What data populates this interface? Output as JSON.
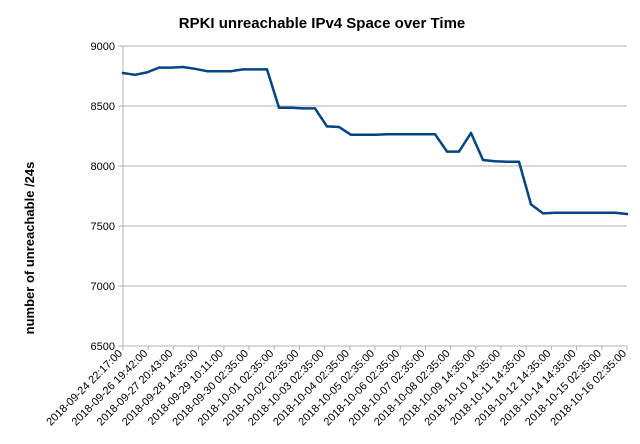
{
  "chart_data": {
    "type": "line",
    "title": "RPKI unreachable IPv4 Space over Time",
    "xlabel": "",
    "ylabel": "number of unreachable /24s",
    "ylim": [
      6500,
      9000
    ],
    "yticks": [
      6500,
      7000,
      7500,
      8000,
      8500,
      9000
    ],
    "grid": true,
    "legend": "none",
    "colors": {
      "series": "#004586",
      "grid": "#b3b3b3"
    },
    "x_tick_labels": [
      "2018-09-24 22:17:00",
      "2018-09-26 19:42:00",
      "2018-09-27 20:43:00",
      "2018-09-28 14:35:00",
      "2018-09-29 10:11:00",
      "2018-09-30 02:35:00",
      "2018-10-01 02:35:00",
      "2018-10-02 02:35:00",
      "2018-10-03 02:35:00",
      "2018-10-04 02:35:00",
      "2018-10-05 02:35:00",
      "2018-10-06 02:35:00",
      "2018-10-07 02:35:00",
      "2018-10-08 02:35:00",
      "2018-10-09 14:35:00",
      "2018-10-10 14:35:00",
      "2018-10-11 14:35:00",
      "2018-10-12 14:35:00",
      "2018-10-14 14:35:00",
      "2018-10-15 02:35:00",
      "2018-10-16 02:35:00"
    ],
    "series": [
      {
        "values": [
          8775,
          8760,
          8780,
          8820,
          8820,
          8825,
          8810,
          8790,
          8790,
          8790,
          8805,
          8805,
          8805,
          8485,
          8485,
          8480,
          8480,
          8330,
          8325,
          8260,
          8260,
          8260,
          8265,
          8265,
          8265,
          8265,
          8265,
          8120,
          8120,
          8275,
          8050,
          8040,
          8035,
          8035,
          7680,
          7605,
          7610,
          7610,
          7610,
          7610,
          7610,
          7610,
          7600
        ]
      }
    ]
  }
}
